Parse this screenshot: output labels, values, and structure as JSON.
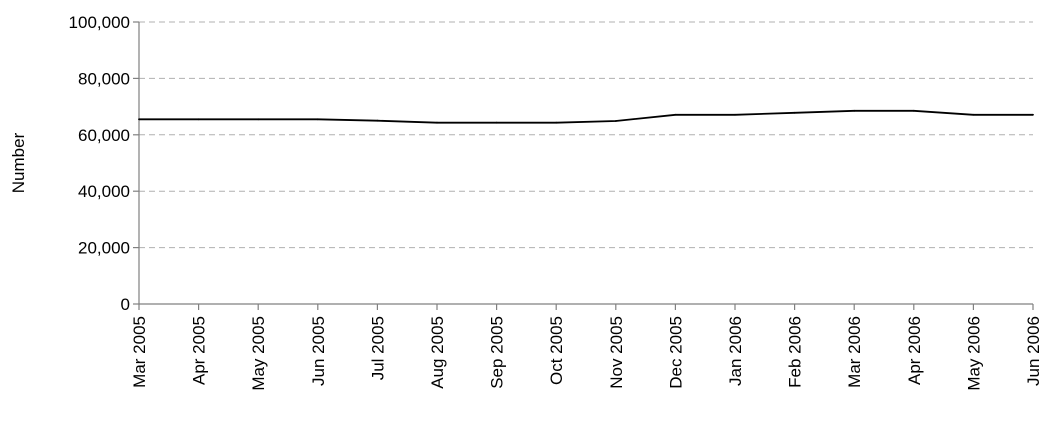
{
  "chart_data": {
    "type": "line",
    "title": "",
    "xlabel": "",
    "ylabel": "Number",
    "ylim": [
      0,
      100000
    ],
    "y_ticks": [
      0,
      20000,
      40000,
      60000,
      80000,
      100000
    ],
    "y_tick_labels": [
      "0",
      "20,000",
      "40,000",
      "60,000",
      "80,000",
      "100,000"
    ],
    "grid": "horizontal dashed",
    "legend": "none",
    "categories": [
      "Mar 2005",
      "Apr 2005",
      "May 2005",
      "Jun 2005",
      "Jul 2005",
      "Aug 2005",
      "Sep 2005",
      "Oct 2005",
      "Nov 2005",
      "Dec 2005",
      "Jan 2006",
      "Feb 2006",
      "Mar 2006",
      "Apr 2006",
      "May 2006",
      "Jun 2006"
    ],
    "series": [
      {
        "values": [
          65500,
          65500,
          65500,
          65500,
          65000,
          64300,
          64300,
          64300,
          64900,
          67100,
          67100,
          67800,
          68500,
          68500,
          67100,
          67100
        ],
        "color": "#000000"
      }
    ],
    "colors": {
      "line": "#000000",
      "axis": "#808080",
      "grid": "#b0b0b0",
      "text": "#000000"
    }
  }
}
